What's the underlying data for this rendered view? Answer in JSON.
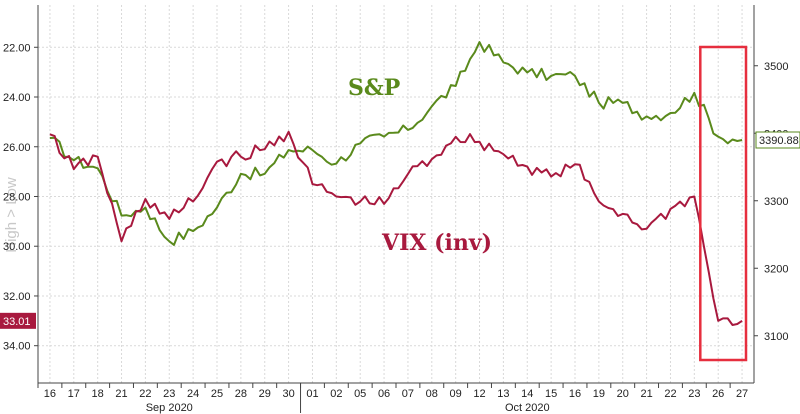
{
  "chart_data": {
    "type": "line",
    "xlabel": "",
    "left_axis_title": "High > Low",
    "months": [
      {
        "label": "Sep 2020",
        "from": "16",
        "to": "30"
      },
      {
        "label": "Oct 2020",
        "from": "01",
        "to": "27"
      }
    ],
    "dates": [
      "16",
      "17",
      "18",
      "21",
      "22",
      "23",
      "24",
      "25",
      "28",
      "29",
      "30",
      "01",
      "02",
      "05",
      "06",
      "07",
      "08",
      "09",
      "12",
      "13",
      "14",
      "15",
      "16",
      "19",
      "20",
      "21",
      "22",
      "23",
      "26",
      "27"
    ],
    "left_axis": {
      "ticks": [
        "22.00",
        "24.00",
        "26.00",
        "28.00",
        "30.00",
        "32.00",
        "34.00"
      ],
      "ylim": [
        35.5,
        20.3
      ],
      "inverted": true
    },
    "right_axis": {
      "ticks": [
        "3500",
        "3400",
        "3300",
        "3200",
        "3100"
      ],
      "ylim": [
        3030,
        3590
      ]
    },
    "series": [
      {
        "name": "S&P",
        "axis": "right",
        "color": "#5a8a1c",
        "last_value_label": "3390.88",
        "values": [
          3393,
          3360,
          3348,
          3278,
          3290,
          3240,
          3255,
          3290,
          3340,
          3340,
          3375,
          3375,
          3355,
          3385,
          3395,
          3405,
          3440,
          3470,
          3535,
          3505,
          3490,
          3485,
          3485,
          3445,
          3445,
          3425,
          3430,
          3460,
          3395,
          3390
        ]
      },
      {
        "name": "VIX (inv)",
        "axis": "left",
        "color": "#a8193e",
        "last_value_label": "33.01",
        "values": [
          25.5,
          26.9,
          26.4,
          29.8,
          28.1,
          28.9,
          28.2,
          26.6,
          26.4,
          26.1,
          25.4,
          27.5,
          28.0,
          28.2,
          28.3,
          27.1,
          26.5,
          25.6,
          25.8,
          26.3,
          26.8,
          27.2,
          26.7,
          28.2,
          28.7,
          29.3,
          28.5,
          28.0,
          33.0,
          33.0
        ]
      }
    ],
    "annotations": [
      {
        "type": "box",
        "from_date_index": 27.75,
        "to_date_index": 30.4,
        "color": "#e62e3e"
      }
    ],
    "grid": true
  }
}
